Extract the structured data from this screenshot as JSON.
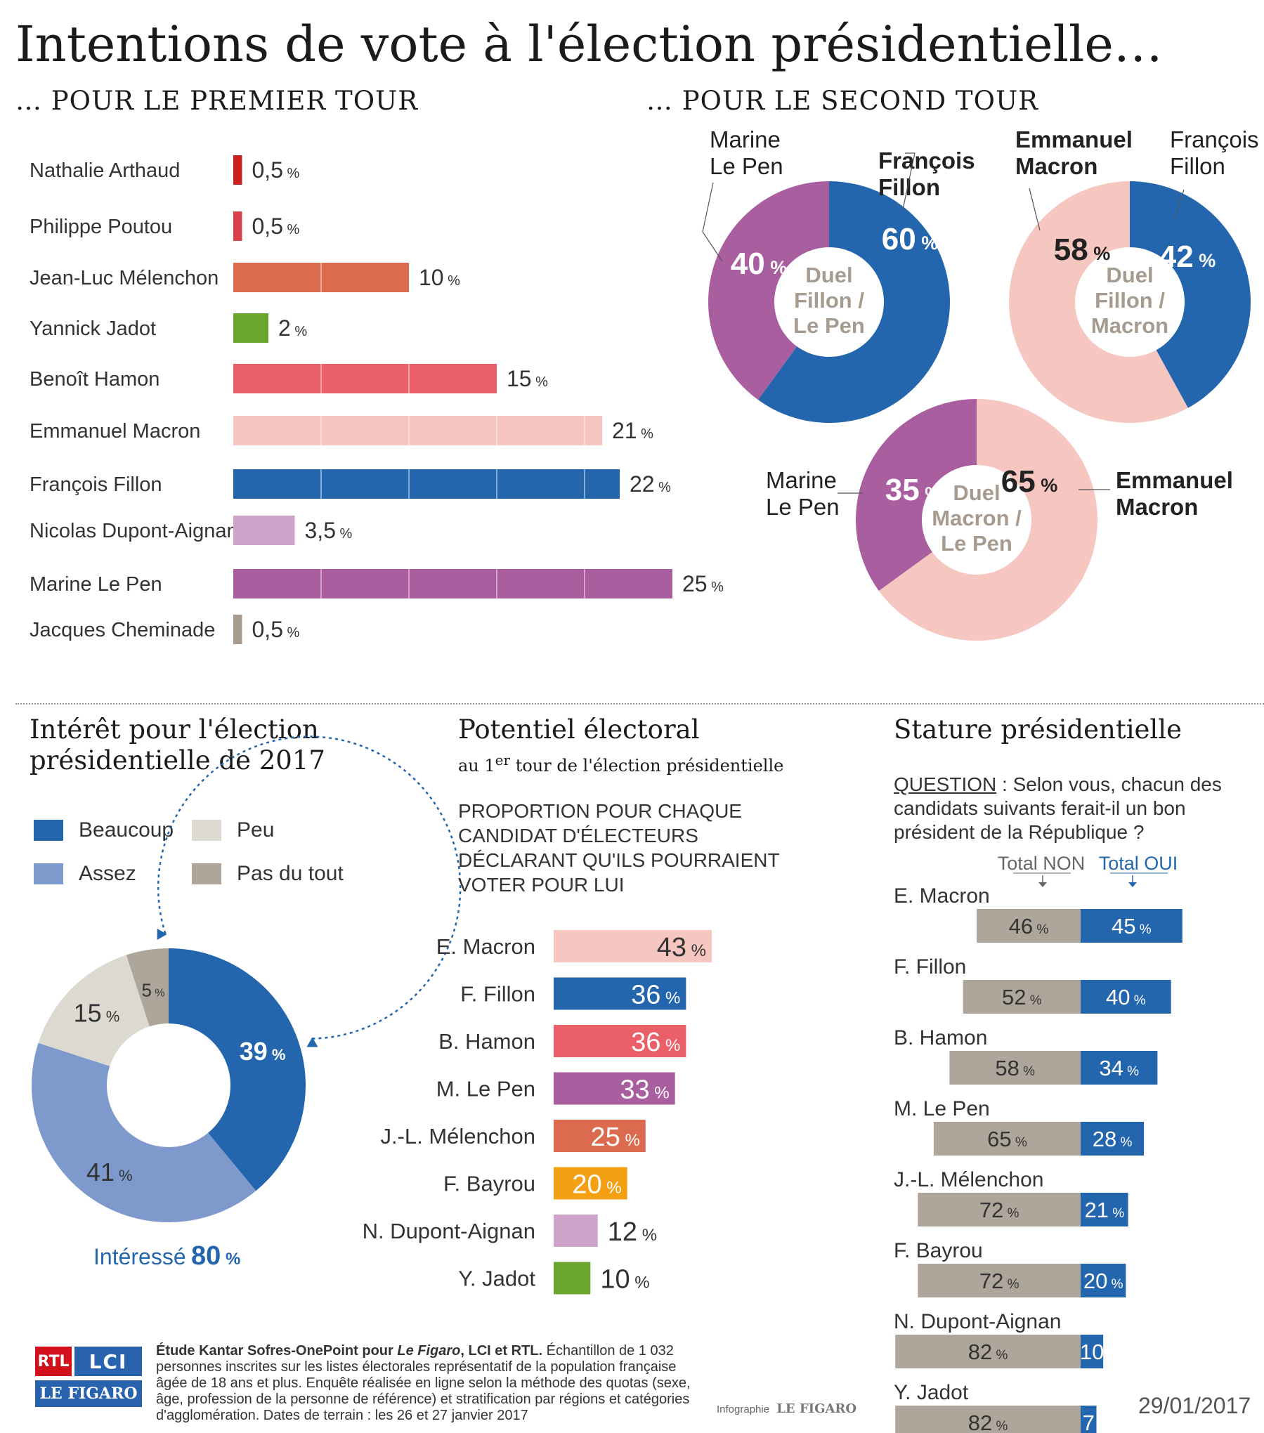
{
  "title": "Intentions de vote à l'élection présidentielle…",
  "premier_tour": {
    "heading": "… POUR LE PREMIER TOUR",
    "chart_data": {
      "type": "bar",
      "categories": [
        "Nathalie Arthaud",
        "Philippe Poutou",
        "Jean-Luc Mélenchon",
        "Yannick Jadot",
        "Benoît Hamon",
        "Emmanuel Macron",
        "François Fillon",
        "Nicolas Dupont-Aignan",
        "Marine Le Pen",
        "Jacques Cheminade"
      ],
      "values": [
        0.5,
        0.5,
        10,
        2,
        15,
        21,
        22,
        3.5,
        25,
        0.5
      ],
      "value_labels": [
        "0,5",
        "0,5",
        "10",
        "2",
        "15",
        "21",
        "22",
        "3,5",
        "25",
        "0,5"
      ],
      "unit": "%",
      "colors": [
        "#c8201f",
        "#d9424a",
        "#db6a4e",
        "#6aa62d",
        "#ea5f68",
        "#f6c7c1",
        "#2466ad",
        "#cfa3c9",
        "#a95e9f",
        "#a69b8e"
      ]
    }
  },
  "second_tour": {
    "heading": "… POUR LE SECOND TOUR",
    "chart_data": [
      {
        "type": "pie",
        "center_label": [
          "Duel",
          "Fillon /",
          "Le Pen"
        ],
        "slices": [
          {
            "name": "François Fillon",
            "label_lines": [
              "François",
              "Fillon"
            ],
            "value": 60,
            "color": "#2466ad",
            "bold": true
          },
          {
            "name": "Marine Le Pen",
            "label_lines": [
              "Marine",
              "Le Pen"
            ],
            "value": 40,
            "color": "#a95e9f",
            "bold": false
          }
        ]
      },
      {
        "type": "pie",
        "center_label": [
          "Duel",
          "Fillon /",
          "Macron"
        ],
        "slices": [
          {
            "name": "François Fillon",
            "label_lines": [
              "François",
              "Fillon"
            ],
            "value": 42,
            "color": "#2466ad",
            "bold": false
          },
          {
            "name": "Emmanuel Macron",
            "label_lines": [
              "Emmanuel",
              "Macron"
            ],
            "value": 58,
            "color": "#f6c7c1",
            "bold": true
          }
        ]
      },
      {
        "type": "pie",
        "center_label": [
          "Duel",
          "Macron /",
          "Le Pen"
        ],
        "slices": [
          {
            "name": "Emmanuel Macron",
            "label_lines": [
              "Emmanuel",
              "Macron"
            ],
            "value": 65,
            "color": "#f6c7c1",
            "bold": true
          },
          {
            "name": "Marine Le Pen",
            "label_lines": [
              "Marine",
              "Le Pen"
            ],
            "value": 35,
            "color": "#a95e9f",
            "bold": false
          }
        ]
      }
    ]
  },
  "interet": {
    "heading_lines": [
      "Intérêt pour l'élection",
      "présidentielle de 2017"
    ],
    "legend": [
      {
        "label": "Beaucoup",
        "color": "#2466ad"
      },
      {
        "label": "Peu",
        "color": "#dcd9d0"
      },
      {
        "label": "Assez",
        "color": "#7e99cb"
      },
      {
        "label": "Pas du tout",
        "color": "#aea69b"
      }
    ],
    "chart_data": {
      "type": "pie",
      "slices": [
        {
          "name": "Beaucoup",
          "value": 39,
          "color": "#2466ad"
        },
        {
          "name": "Assez",
          "value": 41,
          "color": "#7e99cb"
        },
        {
          "name": "Peu",
          "value": 15,
          "color": "#dcd9d0"
        },
        {
          "name": "Pas du tout",
          "value": 5,
          "color": "#aea69b"
        }
      ]
    },
    "interesse_label": "Intéressé",
    "interesse_value": "80",
    "unit": "%"
  },
  "potentiel": {
    "heading": "Potentiel électoral",
    "subheading_prefix": "au 1",
    "subheading_sup": "er",
    "subheading_suffix": " tour de l'élection présidentielle",
    "note_lines": [
      "PROPORTION POUR CHAQUE",
      "CANDIDAT D'ÉLECTEURS",
      "DÉCLARANT QU'ILS POURRAIENT",
      "VOTER POUR LUI"
    ],
    "chart_data": {
      "type": "bar",
      "categories": [
        "E. Macron",
        "F. Fillon",
        "B. Hamon",
        "M. Le Pen",
        "J.-L. Mélenchon",
        "F. Bayrou",
        "N. Dupont-Aignan",
        "Y. Jadot"
      ],
      "values": [
        43,
        36,
        36,
        33,
        25,
        20,
        12,
        10
      ],
      "unit": "%",
      "colors": [
        "#f6c7c1",
        "#2466ad",
        "#ea5f68",
        "#a95e9f",
        "#db6a4e",
        "#f3a012",
        "#cfa3c9",
        "#6aa62d"
      ]
    }
  },
  "stature": {
    "heading": "Stature présidentielle",
    "question_label": "QUESTION",
    "question_lines": [
      " : Selon vous, chacun des",
      "candidats suivants ferait-il un bon",
      "président de la République ?"
    ],
    "total_non": "Total NON",
    "total_oui": "Total OUI",
    "chart_data": {
      "type": "bar",
      "categories": [
        "E. Macron",
        "F. Fillon",
        "B. Hamon",
        "M. Le Pen",
        "J.-L. Mélenchon",
        "F. Bayrou",
        "N. Dupont-Aignan",
        "Y. Jadot"
      ],
      "series": [
        {
          "name": "Total NON",
          "values": [
            46,
            52,
            58,
            65,
            72,
            72,
            82,
            82
          ],
          "color": "#aea69b"
        },
        {
          "name": "Total OUI",
          "values": [
            45,
            40,
            34,
            28,
            21,
            20,
            10,
            7
          ],
          "color": "#2466ad"
        }
      ],
      "unit": "%"
    }
  },
  "footer": {
    "source_bold": "Étude Kantar Sofres-OnePoint pour ",
    "source_italic": "Le Figaro",
    "source_bold2": ", LCI et RTL.",
    "source_rest": " Échantillon de 1 032 personnes inscrites sur les listes électorales représentatif de la population française âgée de 18 ans et plus. Enquête réalisée en ligne selon la méthode des quotas (sexe, âge, profession de la personne de référence) et stratification par régions et catégories d'agglomération. Dates de terrain : les 26 et 27 janvier 2017",
    "infographie": "Infographie",
    "figaro": "LE FIGARO",
    "date": "29/01/2017",
    "logo_rtl": "RTL",
    "logo_lci": "LCI",
    "logo_figaro": "LE FIGARO"
  }
}
